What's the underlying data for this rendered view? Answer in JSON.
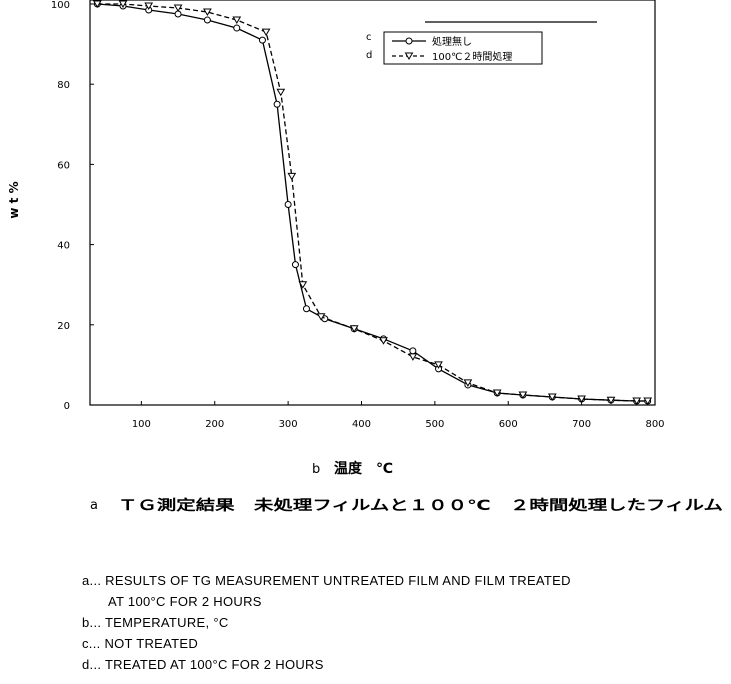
{
  "chart_data": {
    "type": "line",
    "title": "ＴＧ測定結果　未処理フィルムと１００℃　２時間処理したフィルム",
    "title_prefix": "a",
    "xlabel": "温度　℃",
    "xlabel_prefix": "b",
    "ylabel": "w t %",
    "xlim": [
      30,
      800
    ],
    "ylim": [
      0,
      100
    ],
    "x_ticks": [
      100,
      200,
      300,
      400,
      500,
      600,
      700,
      800
    ],
    "y_ticks": [
      0,
      20,
      40,
      60,
      80,
      100
    ],
    "grid": false,
    "legend_position": "top-right",
    "series": [
      {
        "name": "処理無し",
        "key": "c",
        "marker": "circle",
        "dash": "solid",
        "x": [
          40,
          75,
          110,
          150,
          190,
          230,
          265,
          285,
          300,
          310,
          325,
          350,
          390,
          430,
          470,
          505,
          545,
          585,
          620,
          660,
          700,
          740,
          775,
          790
        ],
        "y": [
          100,
          99.5,
          98.5,
          97.5,
          96,
          94,
          91,
          75,
          50,
          35,
          24,
          21.5,
          19,
          16.5,
          13.5,
          9,
          5,
          3,
          2.5,
          2,
          1.5,
          1.2,
          1,
          1
        ]
      },
      {
        "name": "100℃２時間処理",
        "key": "d",
        "marker": "triangle-down",
        "dash": "dashed",
        "x": [
          40,
          75,
          110,
          150,
          190,
          230,
          270,
          290,
          305,
          320,
          345,
          390,
          430,
          470,
          505,
          545,
          585,
          620,
          660,
          700,
          740,
          775,
          790
        ],
        "y": [
          100,
          100,
          99.5,
          99,
          98,
          96,
          93,
          78,
          57,
          30,
          22,
          19,
          16,
          12,
          10,
          5.5,
          3,
          2.5,
          2,
          1.5,
          1.2,
          1,
          1
        ]
      }
    ]
  },
  "notes": [
    "a... RESULTS OF TG MEASUREMENT UNTREATED FILM AND FILM TREATED",
    "AT 100°C FOR 2 HOURS",
    "b... TEMPERATURE, °C",
    "c... NOT TREATED",
    "d... TREATED AT 100°C FOR 2 HOURS"
  ]
}
